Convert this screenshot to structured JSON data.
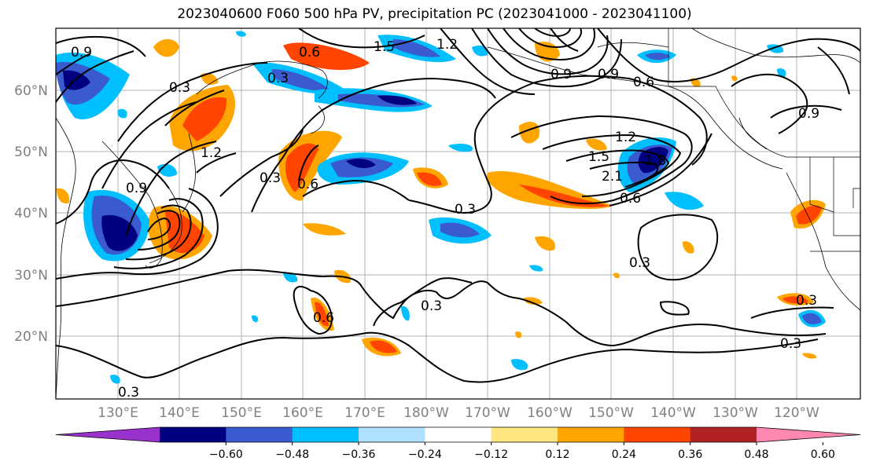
{
  "title": "2023040600 F060 500 hPa PV, precipitation PC (2023041000 - 2023041100)",
  "lat_labels": [
    "60°N",
    "50°N",
    "40°N",
    "30°N",
    "20°N"
  ],
  "lon_labels": [
    "130°E",
    "140°E",
    "150°E",
    "160°E",
    "170°E",
    "180°W",
    "170°W",
    "160°W",
    "150°W",
    "140°W",
    "130°W",
    "120°W"
  ],
  "colorbar": {
    "ticks": [
      "−0.60",
      "−0.48",
      "−0.36",
      "−0.24",
      "−0.12",
      "0.12",
      "0.24",
      "0.36",
      "0.48",
      "0.60"
    ],
    "colors": [
      "#9932cc",
      "#000080",
      "#3a5bd0",
      "#00bfff",
      "#b0e0ff",
      "#ffffff",
      "#ffe680",
      "#ffa500",
      "#ff4500",
      "#b22222",
      "#ff88b0"
    ]
  },
  "contour_labels": [
    "0.9",
    "0.3",
    "1.2",
    "0.9",
    "0.6",
    "0.3",
    "0.6",
    "0.3",
    "1.5",
    "1.2",
    "1.8",
    "2.1",
    "1.5",
    "1.2",
    "0.9",
    "0.6",
    "0.9",
    "0.3",
    "0.6",
    "0.3",
    "0.3",
    "0.3",
    "0.3",
    "0.6",
    "0.9",
    "0.3"
  ]
}
